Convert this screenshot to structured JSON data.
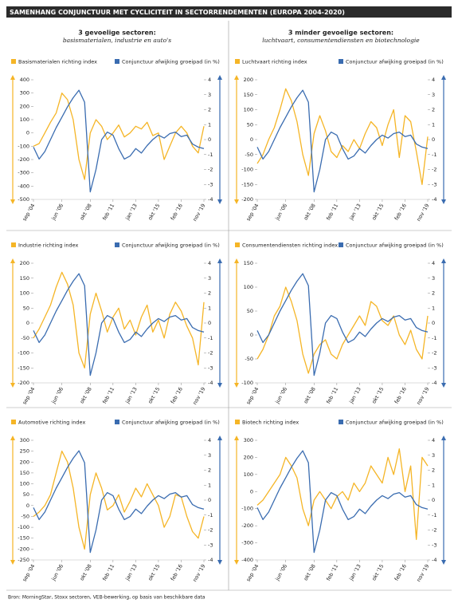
{
  "title": "SAMENHANG CONJUNCTUUR MET CYCLICITEIT IN SECTORRENDEMENTEN (EUROPA 2004-2020)",
  "columns": [
    {
      "heading": "3 gevoelige sectoren:",
      "subheading": "basismaterialen, industrie en auto's"
    },
    {
      "heading": "3 minder gevoelige sectoren:",
      "subheading": "luchtvaart, consumentendiensten en biotechnologie"
    }
  ],
  "source": "Bron: MorningStar, Stoxx sectoren, VEB-bewerking, op basis van beschikbare data",
  "chart_data": [
    {
      "type": "line",
      "categories": [
        "sep '04",
        null,
        null,
        null,
        null,
        "jun '06",
        null,
        null,
        null,
        null,
        "okt '08",
        null,
        null,
        null,
        "feb '11",
        null,
        null,
        null,
        "jan '13",
        null,
        null,
        null,
        "okt '15",
        null,
        null,
        null,
        "feb '16",
        null,
        null,
        null,
        "nov '19"
      ],
      "series": [
        {
          "name": "Basismaterialen richting index",
          "color": "#f5b526",
          "values": [
            -100,
            -80,
            0,
            80,
            150,
            300,
            250,
            100,
            -200,
            -350,
            0,
            100,
            50,
            -50,
            0,
            60,
            -30,
            0,
            50,
            30,
            80,
            -20,
            0,
            -200,
            -100,
            0,
            50,
            0,
            -100,
            -150,
            50
          ]
        },
        {
          "name": "Conjunctuur afwijking groeipad (in %)",
          "color": "#3a6cb0",
          "axis": "y2",
          "values": [
            -0.5,
            -1.3,
            -0.8,
            0,
            0.8,
            1.5,
            2.2,
            2.8,
            3.3,
            2.5,
            -3.5,
            -2,
            0,
            0.5,
            0.3,
            -0.6,
            -1.3,
            -1.1,
            -0.6,
            -0.9,
            -0.4,
            0,
            0.3,
            0.1,
            0.4,
            0.5,
            0.2,
            0.3,
            -0.3,
            -0.5,
            -0.6
          ]
        }
      ],
      "ylim": [
        -500,
        400
      ],
      "yticks": [
        -500,
        -400,
        -300,
        -200,
        -100,
        0,
        100,
        200,
        300,
        400
      ],
      "y2lim": [
        -4,
        4
      ],
      "y2ticks": [
        -4,
        -3,
        -2,
        -1,
        0,
        1,
        2,
        3,
        4
      ]
    },
    {
      "type": "line",
      "categories": [
        "sep '04",
        null,
        null,
        null,
        null,
        "jun '06",
        null,
        null,
        null,
        null,
        "okt '08",
        null,
        null,
        null,
        "feb '11",
        null,
        null,
        null,
        "jan '13",
        null,
        null,
        null,
        "okt '15",
        null,
        null,
        null,
        "feb '16",
        null,
        null,
        null,
        "nov '19"
      ],
      "series": [
        {
          "name": "Luchtvaart richting index",
          "color": "#f5b526",
          "values": [
            -80,
            -50,
            0,
            40,
            100,
            170,
            130,
            60,
            -50,
            -120,
            20,
            80,
            30,
            -40,
            -60,
            -20,
            -40,
            0,
            -30,
            20,
            60,
            40,
            -20,
            50,
            100,
            -60,
            80,
            60,
            -40,
            -150,
            10
          ]
        },
        {
          "name": "Conjunctuur afwijking groeipad (in %)",
          "color": "#3a6cb0",
          "axis": "y2",
          "values": [
            -0.5,
            -1.3,
            -0.8,
            0,
            0.8,
            1.5,
            2.2,
            2.8,
            3.3,
            2.5,
            -3.5,
            -2,
            0,
            0.5,
            0.3,
            -0.6,
            -1.3,
            -1.1,
            -0.6,
            -0.9,
            -0.4,
            0,
            0.3,
            0.1,
            0.4,
            0.5,
            0.2,
            0.3,
            -0.3,
            -0.5,
            -0.6
          ]
        }
      ],
      "ylim": [
        -200,
        200
      ],
      "yticks": [
        -200,
        -150,
        -100,
        -50,
        0,
        50,
        100,
        150,
        200
      ],
      "y2lim": [
        -4,
        4
      ],
      "y2ticks": [
        -4,
        -3,
        -2,
        -1,
        0,
        1,
        2,
        3,
        4
      ]
    },
    {
      "type": "line",
      "categories": [
        "sep '04",
        null,
        null,
        null,
        null,
        "jun '06",
        null,
        null,
        null,
        null,
        "okt '08",
        null,
        null,
        null,
        "feb '11",
        null,
        null,
        null,
        "jan '13",
        null,
        null,
        null,
        "okt '15",
        null,
        null,
        null,
        "feb '16",
        null,
        null,
        null,
        "nov '19"
      ],
      "series": [
        {
          "name": "Industrie richting index",
          "color": "#f5b526",
          "values": [
            -50,
            -20,
            20,
            60,
            120,
            170,
            130,
            60,
            -100,
            -150,
            30,
            100,
            40,
            -30,
            20,
            50,
            -20,
            10,
            -40,
            20,
            60,
            -30,
            10,
            -50,
            30,
            70,
            40,
            -10,
            -50,
            -140,
            70
          ]
        },
        {
          "name": "Conjunctuur afwijking groeipad (in %)",
          "color": "#3a6cb0",
          "axis": "y2",
          "values": [
            -0.5,
            -1.3,
            -0.8,
            0,
            0.8,
            1.5,
            2.2,
            2.8,
            3.3,
            2.5,
            -3.5,
            -2,
            0,
            0.5,
            0.3,
            -0.6,
            -1.3,
            -1.1,
            -0.6,
            -0.9,
            -0.4,
            0,
            0.3,
            0.1,
            0.4,
            0.5,
            0.2,
            0.3,
            -0.3,
            -0.5,
            -0.6
          ]
        }
      ],
      "ylim": [
        -200,
        200
      ],
      "yticks": [
        -200,
        -150,
        -100,
        -50,
        0,
        50,
        100,
        150,
        200
      ],
      "y2lim": [
        -4,
        4
      ],
      "y2ticks": [
        -4,
        -3,
        -2,
        -1,
        0,
        1,
        2,
        3,
        4
      ]
    },
    {
      "type": "line",
      "categories": [
        "sep '04",
        null,
        null,
        null,
        null,
        "jun '06",
        null,
        null,
        null,
        null,
        "okt '08",
        null,
        null,
        null,
        "feb '11",
        null,
        null,
        null,
        "jan '13",
        null,
        null,
        null,
        "okt '15",
        null,
        null,
        null,
        "feb '16",
        null,
        null,
        null,
        "nov '19"
      ],
      "series": [
        {
          "name": "Consumentendiensten richting index",
          "color": "#f5b526",
          "values": [
            -50,
            -30,
            0,
            40,
            60,
            100,
            70,
            30,
            -40,
            -80,
            -40,
            -20,
            -10,
            -40,
            -50,
            -20,
            0,
            20,
            40,
            20,
            70,
            60,
            30,
            20,
            40,
            0,
            -20,
            10,
            -30,
            -50,
            40
          ]
        },
        {
          "name": "Conjunctuur afwijking groeipad (in %)",
          "color": "#3a6cb0",
          "axis": "y2",
          "values": [
            -0.5,
            -1.3,
            -0.8,
            0,
            0.8,
            1.5,
            2.2,
            2.8,
            3.3,
            2.5,
            -3.5,
            -2,
            0,
            0.5,
            0.3,
            -0.6,
            -1.3,
            -1.1,
            -0.6,
            -0.9,
            -0.4,
            0,
            0.3,
            0.1,
            0.4,
            0.5,
            0.2,
            0.3,
            -0.3,
            -0.5,
            -0.6
          ]
        }
      ],
      "ylim": [
        -100,
        150
      ],
      "yticks": [
        -100,
        -50,
        0,
        50,
        100,
        150
      ],
      "y2lim": [
        -4,
        4
      ],
      "y2ticks": [
        -4,
        -3,
        -2,
        -1,
        0,
        1,
        2,
        3,
        4
      ]
    },
    {
      "type": "line",
      "categories": [
        "sep '04",
        null,
        null,
        null,
        null,
        "jun '06",
        null,
        null,
        null,
        null,
        "okt '08",
        null,
        null,
        null,
        "feb '11",
        null,
        null,
        null,
        "jan '13",
        null,
        null,
        null,
        "okt '15",
        null,
        null,
        null,
        "feb '16",
        null,
        null,
        null,
        "nov '19"
      ],
      "series": [
        {
          "name": "Automotive richting index",
          "color": "#f5b526",
          "values": [
            -50,
            -30,
            0,
            50,
            150,
            250,
            200,
            80,
            -100,
            -200,
            50,
            150,
            80,
            -20,
            0,
            50,
            -30,
            20,
            80,
            40,
            100,
            50,
            0,
            -100,
            -50,
            50,
            40,
            -50,
            -120,
            -150,
            -50
          ]
        },
        {
          "name": "Conjunctuur afwijking groeipad (in %)",
          "color": "#3a6cb0",
          "axis": "y2",
          "values": [
            -0.5,
            -1.3,
            -0.8,
            0,
            0.8,
            1.5,
            2.2,
            2.8,
            3.3,
            2.5,
            -3.5,
            -2,
            0,
            0.5,
            0.3,
            -0.6,
            -1.3,
            -1.1,
            -0.6,
            -0.9,
            -0.4,
            0,
            0.3,
            0.1,
            0.4,
            0.5,
            0.2,
            0.3,
            -0.3,
            -0.5,
            -0.6
          ]
        }
      ],
      "ylim": [
        -250,
        300
      ],
      "yticks": [
        -250,
        -200,
        -150,
        -100,
        -50,
        0,
        50,
        100,
        150,
        200,
        250,
        300
      ],
      "y2lim": [
        -4,
        4
      ],
      "y2ticks": [
        -4,
        -3,
        -2,
        -1,
        0,
        1,
        2,
        3,
        4
      ]
    },
    {
      "type": "line",
      "categories": [
        "sep '04",
        null,
        null,
        null,
        null,
        "jun '06",
        null,
        null,
        null,
        null,
        "okt '08",
        null,
        null,
        null,
        "feb '11",
        null,
        null,
        null,
        "jan '13",
        null,
        null,
        null,
        "okt '15",
        null,
        null,
        null,
        "feb '16",
        null,
        null,
        null,
        "nov '19"
      ],
      "series": [
        {
          "name": "Biotech richting index",
          "color": "#f5b526",
          "values": [
            -80,
            -50,
            0,
            50,
            100,
            200,
            150,
            80,
            -100,
            -200,
            -50,
            0,
            -50,
            -100,
            -30,
            0,
            -50,
            50,
            0,
            50,
            150,
            100,
            50,
            200,
            100,
            250,
            0,
            150,
            -280,
            200,
            150
          ]
        },
        {
          "name": "Conjunctuur afwijking groeipad (in %)",
          "color": "#3a6cb0",
          "axis": "y2",
          "values": [
            -0.5,
            -1.3,
            -0.8,
            0,
            0.8,
            1.5,
            2.2,
            2.8,
            3.3,
            2.5,
            -3.5,
            -2,
            0,
            0.5,
            0.3,
            -0.6,
            -1.3,
            -1.1,
            -0.6,
            -0.9,
            -0.4,
            0,
            0.3,
            0.1,
            0.4,
            0.5,
            0.2,
            0.3,
            -0.3,
            -0.5,
            -0.6
          ]
        }
      ],
      "ylim": [
        -400,
        300
      ],
      "yticks": [
        -400,
        -300,
        -200,
        -100,
        0,
        100,
        200,
        300
      ],
      "y2lim": [
        -4,
        4
      ],
      "y2ticks": [
        -4,
        -3,
        -2,
        -1,
        0,
        1,
        2,
        3,
        4
      ]
    }
  ]
}
